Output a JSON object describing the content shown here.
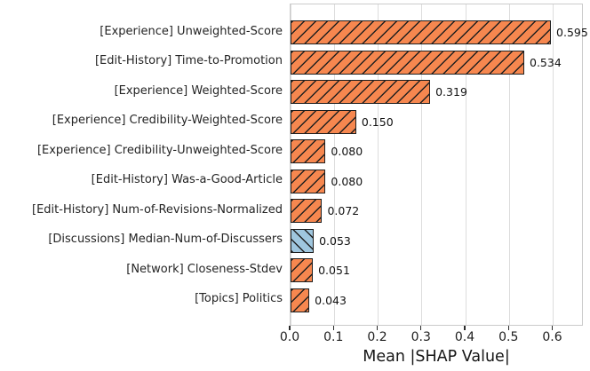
{
  "chart_data": {
    "type": "bar",
    "orientation": "horizontal",
    "title": "",
    "xlabel": "Mean |SHAP Value|",
    "ylabel": "",
    "xlim": [
      0,
      0.67
    ],
    "x_ticks": [
      "0.0",
      "0.1",
      "0.2",
      "0.3",
      "0.4",
      "0.5",
      "0.6"
    ],
    "grid": "vertical",
    "legend": "none",
    "bars": [
      {
        "label": "[Experience] Unweighted-Score",
        "value": 0.595,
        "display": "0.595",
        "color": "#f6874f",
        "hatch": "/"
      },
      {
        "label": "[Edit-History] Time-to-Promotion",
        "value": 0.534,
        "display": "0.534",
        "color": "#f6874f",
        "hatch": "/"
      },
      {
        "label": "[Experience] Weighted-Score",
        "value": 0.319,
        "display": "0.319",
        "color": "#f6874f",
        "hatch": "/"
      },
      {
        "label": "[Experience] Credibility-Weighted-Score",
        "value": 0.15,
        "display": "0.150",
        "color": "#f6874f",
        "hatch": "/"
      },
      {
        "label": "[Experience] Credibility-Unweighted-Score",
        "value": 0.08,
        "display": "0.080",
        "color": "#f6874f",
        "hatch": "/"
      },
      {
        "label": "[Edit-History] Was-a-Good-Article",
        "value": 0.08,
        "display": "0.080",
        "color": "#f6874f",
        "hatch": "/"
      },
      {
        "label": "[Edit-History] Num-of-Revisions-Normalized",
        "value": 0.072,
        "display": "0.072",
        "color": "#f6874f",
        "hatch": "/"
      },
      {
        "label": "[Discussions] Median-Num-of-Discussers",
        "value": 0.053,
        "display": "0.053",
        "color": "#9fc6de",
        "hatch": "\\"
      },
      {
        "label": "[Network] Closeness-Stdev",
        "value": 0.051,
        "display": "0.051",
        "color": "#f6874f",
        "hatch": "/"
      },
      {
        "label": "[Topics] Politics",
        "value": 0.043,
        "display": "0.043",
        "color": "#f6874f",
        "hatch": "/"
      }
    ],
    "colors": {
      "bar_orange": "#f6874f",
      "bar_blue": "#9fc6de",
      "bar_edge": "#1f1f1f",
      "hatch": "#1f1f1f",
      "gridline": "#dcdcdc",
      "spine": "#cbcbcb",
      "text": "#242424"
    }
  }
}
